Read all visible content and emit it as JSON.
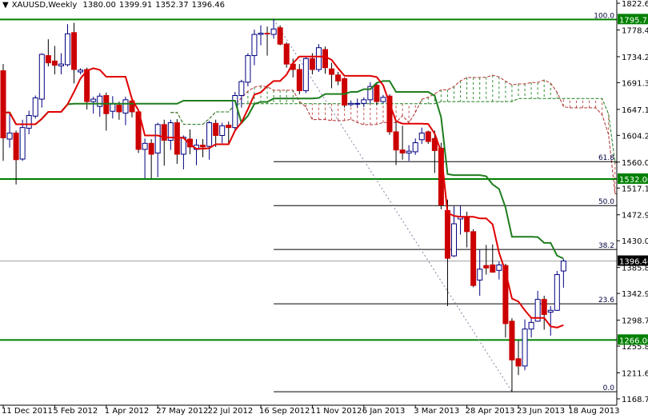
{
  "header": {
    "arrow_icon": "triangle-down-icon",
    "symbol": "XAUUSD,Weekly",
    "open": "1380.00",
    "high": "1399.91",
    "low": "1352.37",
    "close": "1396.46"
  },
  "chart_data": {
    "type": "candlestick",
    "symbol": "XAUUSD",
    "timeframe": "Weekly",
    "first_bar_date": "11 Dec 2011",
    "ylim": [
      1168.7,
      1822.6
    ],
    "y_ticks": [
      "1822.60",
      "1778.40",
      "1734.20",
      "1691.30",
      "1647.10",
      "1604.20",
      "1560.00",
      "1517.10",
      "1472.90",
      "1430.00",
      "1385.80",
      "1342.90",
      "1298.70",
      "1255.80",
      "1211.60",
      "1168.70"
    ],
    "x_ticks": [
      "11 Dec 2011",
      "5 Feb 2012",
      "1 Apr 2012",
      "27 May 2012",
      "22 Jul 2012",
      "16 Sep 2012",
      "11 Nov 2012",
      "6 Jan 2013",
      "3 Mar 2013",
      "28 Apr 2013",
      "23 Jun 2013",
      "18 Aug 2013"
    ],
    "ohlc": [
      [
        1711,
        1722,
        1562,
        1600
      ],
      [
        1598,
        1641,
        1584,
        1608
      ],
      [
        1608,
        1612,
        1523,
        1564
      ],
      [
        1565,
        1630,
        1562,
        1617
      ],
      [
        1616,
        1645,
        1606,
        1637
      ],
      [
        1636,
        1670,
        1632,
        1666
      ],
      [
        1664,
        1740,
        1650,
        1738
      ],
      [
        1736,
        1763,
        1718,
        1724
      ],
      [
        1727,
        1752,
        1705,
        1720
      ],
      [
        1719,
        1740,
        1705,
        1722
      ],
      [
        1721,
        1788,
        1718,
        1772
      ],
      [
        1774,
        1790,
        1690,
        1713
      ],
      [
        1709,
        1715,
        1705,
        1712
      ],
      [
        1713,
        1716,
        1647,
        1660
      ],
      [
        1660,
        1668,
        1640,
        1664
      ],
      [
        1652,
        1674,
        1635,
        1669
      ],
      [
        1670,
        1675,
        1612,
        1640
      ],
      [
        1644,
        1669,
        1632,
        1656
      ],
      [
        1654,
        1660,
        1630,
        1643
      ],
      [
        1641,
        1668,
        1621,
        1663
      ],
      [
        1661,
        1667,
        1634,
        1643
      ],
      [
        1643,
        1645,
        1575,
        1581
      ],
      [
        1581,
        1599,
        1533,
        1591
      ],
      [
        1591,
        1598,
        1533,
        1573
      ],
      [
        1575,
        1625,
        1535,
        1622
      ],
      [
        1622,
        1630,
        1554,
        1596
      ],
      [
        1596,
        1630,
        1580,
        1625
      ],
      [
        1625,
        1631,
        1557,
        1573
      ],
      [
        1573,
        1604,
        1548,
        1601
      ],
      [
        1598,
        1614,
        1573,
        1585
      ],
      [
        1581,
        1598,
        1555,
        1588
      ],
      [
        1588,
        1598,
        1568,
        1585
      ],
      [
        1586,
        1628,
        1564,
        1625
      ],
      [
        1624,
        1630,
        1585,
        1604
      ],
      [
        1604,
        1625,
        1591,
        1620
      ],
      [
        1621,
        1627,
        1591,
        1617
      ],
      [
        1617,
        1676,
        1612,
        1670
      ],
      [
        1670,
        1696,
        1650,
        1693
      ],
      [
        1692,
        1740,
        1685,
        1736
      ],
      [
        1736,
        1779,
        1720,
        1771
      ],
      [
        1771,
        1786,
        1753,
        1773
      ],
      [
        1773,
        1784,
        1736,
        1772
      ],
      [
        1771,
        1797,
        1764,
        1780
      ],
      [
        1782,
        1786,
        1753,
        1755
      ],
      [
        1755,
        1758,
        1716,
        1722
      ],
      [
        1722,
        1731,
        1700,
        1713
      ],
      [
        1713,
        1722,
        1672,
        1678
      ],
      [
        1678,
        1735,
        1674,
        1731
      ],
      [
        1731,
        1740,
        1705,
        1713
      ],
      [
        1713,
        1755,
        1709,
        1749
      ],
      [
        1746,
        1751,
        1706,
        1716
      ],
      [
        1714,
        1724,
        1682,
        1705
      ],
      [
        1704,
        1709,
        1687,
        1694
      ],
      [
        1698,
        1700,
        1650,
        1654
      ],
      [
        1655,
        1662,
        1652,
        1657
      ],
      [
        1656,
        1665,
        1650,
        1657
      ],
      [
        1657,
        1667,
        1651,
        1663
      ],
      [
        1663,
        1692,
        1656,
        1685
      ],
      [
        1687,
        1691,
        1654,
        1660
      ],
      [
        1660,
        1671,
        1657,
        1667
      ],
      [
        1669,
        1672,
        1605,
        1610
      ],
      [
        1610,
        1630,
        1555,
        1580
      ],
      [
        1580,
        1620,
        1564,
        1575
      ],
      [
        1575,
        1588,
        1562,
        1578
      ],
      [
        1577,
        1599,
        1572,
        1592
      ],
      [
        1597,
        1617,
        1590,
        1608
      ],
      [
        1610,
        1612,
        1590,
        1594
      ],
      [
        1599,
        1612,
        1542,
        1579
      ],
      [
        1583,
        1592,
        1482,
        1489
      ],
      [
        1480,
        1498,
        1322,
        1401
      ],
      [
        1405,
        1487,
        1403,
        1458
      ],
      [
        1466,
        1488,
        1440,
        1470
      ],
      [
        1470,
        1478,
        1419,
        1445
      ],
      [
        1445,
        1449,
        1353,
        1356
      ],
      [
        1365,
        1415,
        1339,
        1383
      ],
      [
        1389,
        1423,
        1374,
        1385
      ],
      [
        1390,
        1424,
        1378,
        1378
      ],
      [
        1381,
        1396,
        1366,
        1390
      ],
      [
        1389,
        1392,
        1270,
        1293
      ],
      [
        1297,
        1302,
        1181,
        1233
      ],
      [
        1235,
        1265,
        1208,
        1223
      ],
      [
        1223,
        1300,
        1216,
        1284
      ],
      [
        1284,
        1302,
        1270,
        1295
      ],
      [
        1297,
        1347,
        1296,
        1333
      ],
      [
        1333,
        1339,
        1283,
        1308
      ],
      [
        1312,
        1322,
        1273,
        1315
      ],
      [
        1315,
        1380,
        1314,
        1374
      ],
      [
        1380,
        1399.91,
        1352.37,
        1396.46
      ]
    ],
    "horizontal_levels": [
      {
        "label": "1795.75",
        "price": 1795.75,
        "color": "#008000"
      },
      {
        "label": "1532.00",
        "price": 1532.0,
        "color": "#008000"
      },
      {
        "label": "1266.00",
        "price": 1266.0,
        "color": "#008000"
      }
    ],
    "current_price": {
      "label": "1396.46",
      "price": 1396.46,
      "color": "#000000"
    },
    "fibonacci": {
      "high": 1795.75,
      "low": 1180.5,
      "levels": [
        {
          "label": "100.0",
          "ratio": 1.0
        },
        {
          "label": "61.8",
          "ratio": 0.618
        },
        {
          "label": "50.0",
          "ratio": 0.5
        },
        {
          "label": "38.2",
          "ratio": 0.382
        },
        {
          "label": "23.6",
          "ratio": 0.236
        },
        {
          "label": "0.0",
          "ratio": 0.0
        }
      ]
    },
    "indicator": "Ichimoku",
    "colors": {
      "bull_body": "#ffffff",
      "bull_outline": "#000080",
      "bear_body": "#cc0000",
      "bear_outline": "#000000",
      "tenkan": "#e00000",
      "kijun": "#1e7d1e",
      "span_a": "#b03030",
      "span_b": "#1e7d1e",
      "trendline": "#8080a0"
    }
  }
}
